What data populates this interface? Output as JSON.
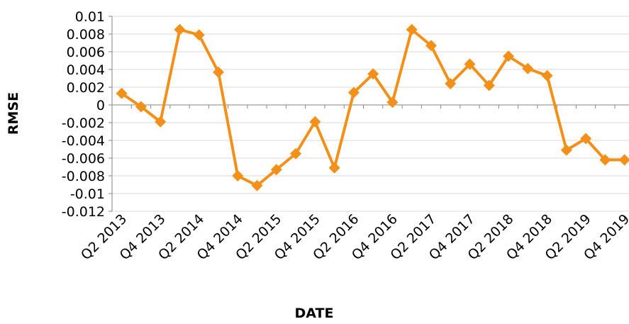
{
  "chart_data": {
    "type": "line",
    "x_label": "DATE",
    "y_label": "RMSE",
    "categories": [
      "Q2 2013",
      null,
      "Q4 2013",
      null,
      "Q2 2014",
      null,
      "Q4 2014",
      null,
      "Q2 2015",
      null,
      "Q4 2015",
      null,
      "Q2 2016",
      null,
      "Q4 2016",
      null,
      "Q2 2017",
      null,
      "Q4 2017",
      null,
      "Q2 2018",
      null,
      "Q4 2018",
      null,
      "Q2 2019",
      null,
      "Q4 2019"
    ],
    "series": [
      {
        "name": "RMSE",
        "color": "#f39019",
        "values": [
          0.0013,
          -0.0002,
          -0.0019,
          0.0085,
          0.0079,
          0.0037,
          -0.008,
          -0.0091,
          -0.0073,
          -0.0055,
          -0.0019,
          -0.0071,
          0.0014,
          0.0035,
          0.0003,
          0.0085,
          0.0067,
          0.0024,
          0.0046,
          0.0022,
          0.0055,
          0.0041,
          0.0033,
          -0.0051,
          -0.0038,
          -0.0062,
          -0.0062
        ]
      }
    ],
    "ylim": [
      -0.012,
      0.01
    ],
    "yticks": [
      -0.012,
      -0.01,
      -0.008,
      -0.006,
      -0.004,
      -0.002,
      0,
      0.002,
      0.004,
      0.006,
      0.008,
      0.01
    ],
    "grid": true,
    "marker": "diamond"
  }
}
